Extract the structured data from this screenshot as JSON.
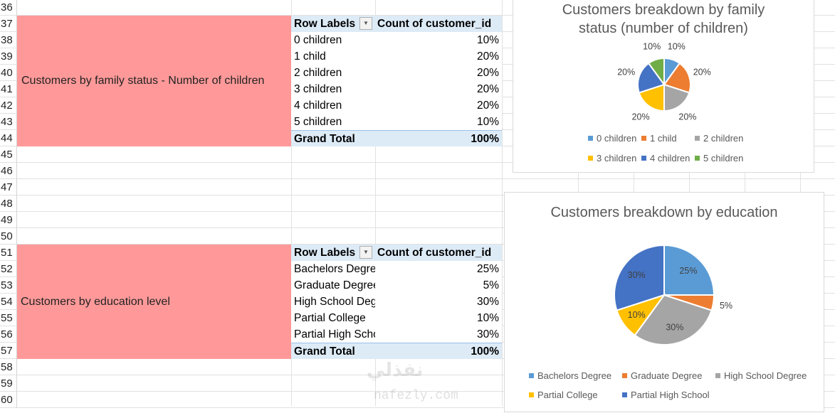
{
  "rows": [
    "36",
    "37",
    "38",
    "39",
    "40",
    "41",
    "42",
    "43",
    "44",
    "45",
    "46",
    "47",
    "48",
    "49",
    "50",
    "51",
    "52",
    "53",
    "54",
    "55",
    "56",
    "57",
    "58",
    "59",
    "60"
  ],
  "section1": {
    "label": "Customers by family status - Number of children",
    "pivot": {
      "header_row": "Row Labels",
      "header_value": "Count of customer_id",
      "rows": [
        {
          "label": "0 children",
          "value": "10%"
        },
        {
          "label": "1 child",
          "value": "20%"
        },
        {
          "label": "2 children",
          "value": "20%"
        },
        {
          "label": "3 children",
          "value": "20%"
        },
        {
          "label": "4 children",
          "value": "20%"
        },
        {
          "label": "5 children",
          "value": "10%"
        }
      ],
      "total_label": "Grand Total",
      "total_value": "100%"
    }
  },
  "section2": {
    "label": "Customers by education level",
    "pivot": {
      "header_row": "Row Labels",
      "header_value": "Count of customer_id",
      "rows": [
        {
          "label": "Bachelors Degree",
          "value": "25%"
        },
        {
          "label": "Graduate Degree",
          "value": "5%"
        },
        {
          "label": "High School Degree",
          "value": "30%"
        },
        {
          "label": "Partial College",
          "value": "10%"
        },
        {
          "label": "Partial High School",
          "value": "30%"
        }
      ],
      "total_label": "Grand Total",
      "total_value": "100%"
    }
  },
  "chart_data": [
    {
      "type": "pie",
      "title": "Customers breakdown by family status (number of children)",
      "categories": [
        "0 children",
        "1 child",
        "2 children",
        "3 children",
        "4 children",
        "5 children"
      ],
      "values": [
        10,
        20,
        20,
        20,
        20,
        10
      ],
      "labels": [
        "10%",
        "20%",
        "20%",
        "20%",
        "20%",
        "10%"
      ],
      "colors": [
        "#5b9bd5",
        "#ed7d31",
        "#a5a5a5",
        "#ffc000",
        "#4472c4",
        "#70ad47"
      ],
      "legend": "bottom"
    },
    {
      "type": "pie",
      "title": "Customers breakdown by education",
      "categories": [
        "Bachelors Degree",
        "Graduate Degree",
        "High School Degree",
        "Partial College",
        "Partial High School"
      ],
      "values": [
        25,
        5,
        30,
        10,
        30
      ],
      "labels": [
        "25%",
        "5%",
        "30%",
        "10%",
        "30%"
      ],
      "colors": [
        "#5b9bd5",
        "#ed7d31",
        "#a5a5a5",
        "#ffc000",
        "#4472c4"
      ],
      "legend": "bottom"
    }
  ],
  "watermark": {
    "logo": "نفذلي",
    "text": "nafezly.com"
  }
}
